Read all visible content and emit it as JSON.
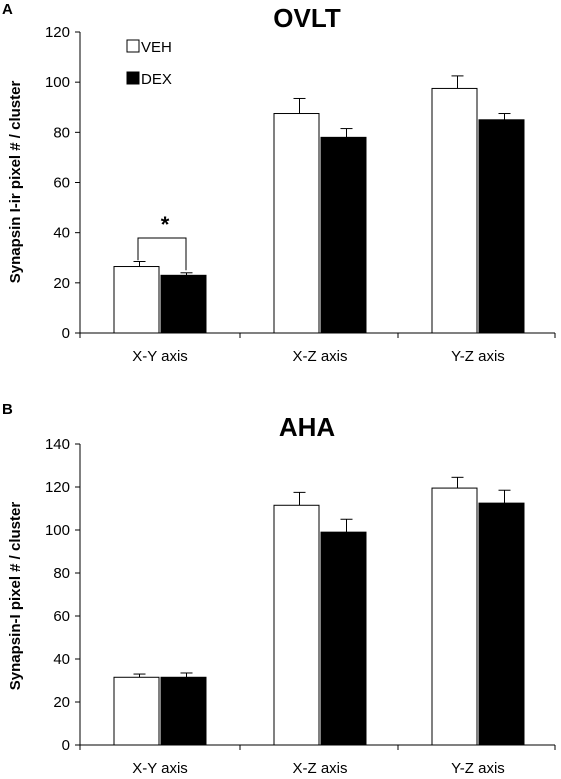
{
  "chart_data": [
    {
      "panel": "A",
      "type": "bar",
      "title": "OVLT",
      "ylabel": "Synapsin I-ir pixel # / cluster",
      "xlabel": "",
      "categories": [
        "X-Y axis",
        "X-Z axis",
        "Y-Z axis"
      ],
      "ylim": [
        0,
        120
      ],
      "yticks": [
        0,
        20,
        40,
        60,
        80,
        100,
        120
      ],
      "series": [
        {
          "name": "VEH",
          "values": [
            26.5,
            87.5,
            97.5
          ],
          "errors": [
            2,
            6,
            5
          ],
          "color": "#ffffff"
        },
        {
          "name": "DEX",
          "values": [
            23,
            78,
            85
          ],
          "errors": [
            1,
            3.5,
            2.5
          ],
          "color": "#000000"
        }
      ],
      "annotation": {
        "text": "*",
        "category": "X-Y axis"
      },
      "legend": "top-left"
    },
    {
      "panel": "B",
      "type": "bar",
      "title": "AHA",
      "ylabel": "Synapsin-I pixel # / cluster",
      "xlabel": "",
      "categories": [
        "X-Y axis",
        "X-Z axis",
        "Y-Z axis"
      ],
      "ylim": [
        0,
        140
      ],
      "yticks": [
        0,
        20,
        40,
        60,
        80,
        100,
        120,
        140
      ],
      "series": [
        {
          "name": "VEH",
          "values": [
            31.5,
            111.5,
            119.5
          ],
          "errors": [
            1.5,
            6,
            5
          ],
          "color": "#ffffff"
        },
        {
          "name": "DEX",
          "values": [
            31.5,
            99,
            112.5
          ],
          "errors": [
            2,
            6,
            6
          ],
          "color": "#000000"
        }
      ]
    }
  ]
}
